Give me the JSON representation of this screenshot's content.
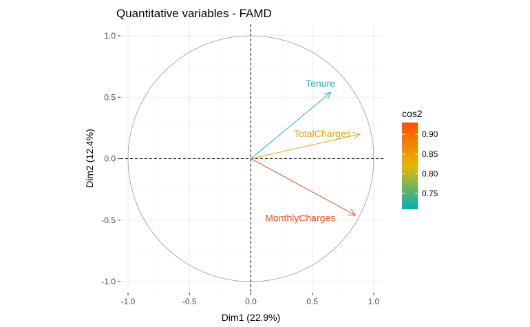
{
  "chart_data": {
    "type": "scatter",
    "title": "Quantitative variables - FAMD",
    "xlabel": "Dim1 (22.9%)",
    "ylabel": "Dim2 (12.4%)",
    "xlim": [
      -1.0,
      1.0
    ],
    "ylim": [
      -1.0,
      1.0
    ],
    "x_ticks": [
      "-1.0",
      "-0.5",
      "0.0",
      "0.5",
      "1.0"
    ],
    "y_ticks": [
      "-1.0",
      "-0.5",
      "0.0",
      "0.5",
      "1.0"
    ],
    "grid": true,
    "unit_circle": true,
    "variables": [
      {
        "name": "Tenure",
        "x": 0.65,
        "y": 0.54,
        "cos2": 0.71,
        "color": "#22B4C1"
      },
      {
        "name": "TotalCharges",
        "x": 0.89,
        "y": 0.2,
        "cos2": 0.83,
        "color": "#E7A21C"
      },
      {
        "name": "MonthlyCharges",
        "x": 0.85,
        "y": -0.46,
        "cos2": 0.93,
        "color": "#E8531E"
      }
    ],
    "legend": {
      "title": "cos2",
      "position": "right",
      "ticks": [
        "0.90",
        "0.85",
        "0.80",
        "0.75"
      ],
      "tick_values": [
        0.9,
        0.85,
        0.8,
        0.75
      ],
      "range": [
        0.71,
        0.93
      ],
      "colors": [
        "#00AFBB",
        "#E7B800",
        "#FC4E07"
      ]
    }
  }
}
